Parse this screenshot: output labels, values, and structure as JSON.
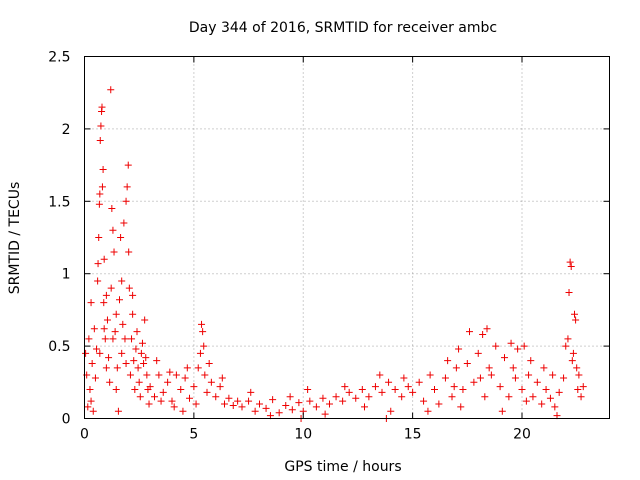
{
  "chart_data": {
    "type": "scatter",
    "title": "Day 344 of 2016, SRMTID for receiver ambc",
    "xlabel": "GPS time / hours",
    "ylabel": "SRMTID / TECUs",
    "xlim": [
      0,
      24
    ],
    "ylim": [
      0,
      2.5
    ],
    "xticks": [
      0,
      5,
      10,
      15,
      20
    ],
    "yticks": [
      0,
      0.5,
      1,
      1.5,
      2,
      2.5
    ],
    "xtick_labels": [
      "0",
      "5",
      "10",
      "15",
      "20"
    ],
    "ytick_labels": [
      "0",
      "0.5",
      "1",
      "1.5",
      "2",
      "2.5"
    ],
    "grid": true,
    "marker": "+",
    "marker_color": "#ee0000",
    "series": [
      {
        "name": "SRMTID",
        "points": [
          [
            0.05,
            0.45
          ],
          [
            0.1,
            0.3
          ],
          [
            0.15,
            0.08
          ],
          [
            0.2,
            0.55
          ],
          [
            0.25,
            0.2
          ],
          [
            0.3,
            0.12
          ],
          [
            0.35,
            0.38
          ],
          [
            0.4,
            0.05
          ],
          [
            0.45,
            0.62
          ],
          [
            0.5,
            0.28
          ],
          [
            0.55,
            0.48
          ],
          [
            0.6,
            0.95
          ],
          [
            0.62,
            1.07
          ],
          [
            0.65,
            1.25
          ],
          [
            0.68,
            1.48
          ],
          [
            0.7,
            1.55
          ],
          [
            0.72,
            1.92
          ],
          [
            0.75,
            2.02
          ],
          [
            0.78,
            2.12
          ],
          [
            0.8,
            2.15
          ],
          [
            0.82,
            1.6
          ],
          [
            0.85,
            1.72
          ],
          [
            0.88,
            0.8
          ],
          [
            0.9,
            1.1
          ],
          [
            0.95,
            0.55
          ],
          [
            1.0,
            0.35
          ],
          [
            1.05,
            0.68
          ],
          [
            1.1,
            0.42
          ],
          [
            1.15,
            0.25
          ],
          [
            1.2,
            2.27
          ],
          [
            1.22,
            0.9
          ],
          [
            1.25,
            1.45
          ],
          [
            1.3,
            1.3
          ],
          [
            1.35,
            1.15
          ],
          [
            1.4,
            0.6
          ],
          [
            1.45,
            0.2
          ],
          [
            1.5,
            0.35
          ],
          [
            1.55,
            0.05
          ],
          [
            1.6,
            0.82
          ],
          [
            1.65,
            1.25
          ],
          [
            1.7,
            0.45
          ],
          [
            1.75,
            0.65
          ],
          [
            1.8,
            1.35
          ],
          [
            1.85,
            0.55
          ],
          [
            1.9,
            1.5
          ],
          [
            1.95,
            1.6
          ],
          [
            2.0,
            1.75
          ],
          [
            2.02,
            1.15
          ],
          [
            2.05,
            0.9
          ],
          [
            2.1,
            0.3
          ],
          [
            2.15,
            0.55
          ],
          [
            2.2,
            0.72
          ],
          [
            2.25,
            0.4
          ],
          [
            2.3,
            0.2
          ],
          [
            2.35,
            0.48
          ],
          [
            2.4,
            0.6
          ],
          [
            2.45,
            0.35
          ],
          [
            2.5,
            0.25
          ],
          [
            2.55,
            0.15
          ],
          [
            2.6,
            0.45
          ],
          [
            2.65,
            0.52
          ],
          [
            2.7,
            0.38
          ],
          [
            2.75,
            0.68
          ],
          [
            2.8,
            0.42
          ],
          [
            2.85,
            0.3
          ],
          [
            2.9,
            0.2
          ],
          [
            2.95,
            0.1
          ],
          [
            0.3,
            0.8
          ],
          [
            0.7,
            0.45
          ],
          [
            1.0,
            0.85
          ],
          [
            1.3,
            0.55
          ],
          [
            1.7,
            0.95
          ],
          [
            2.2,
            0.85
          ],
          [
            0.9,
            0.62
          ],
          [
            1.45,
            0.72
          ],
          [
            1.9,
            0.38
          ],
          [
            3.0,
            0.22
          ],
          [
            3.2,
            0.15
          ],
          [
            3.4,
            0.3
          ],
          [
            3.6,
            0.18
          ],
          [
            3.8,
            0.25
          ],
          [
            4.0,
            0.12
          ],
          [
            4.2,
            0.3
          ],
          [
            4.4,
            0.2
          ],
          [
            4.6,
            0.28
          ],
          [
            4.8,
            0.14
          ],
          [
            5.0,
            0.22
          ],
          [
            5.2,
            0.35
          ],
          [
            5.3,
            0.45
          ],
          [
            5.35,
            0.65
          ],
          [
            5.4,
            0.6
          ],
          [
            5.45,
            0.5
          ],
          [
            5.5,
            0.3
          ],
          [
            5.6,
            0.18
          ],
          [
            5.8,
            0.25
          ],
          [
            6.0,
            0.15
          ],
          [
            6.2,
            0.22
          ],
          [
            6.4,
            0.1
          ],
          [
            6.6,
            0.14
          ],
          [
            6.8,
            0.09
          ],
          [
            7.0,
            0.12
          ],
          [
            3.5,
            0.12
          ],
          [
            4.1,
            0.08
          ],
          [
            4.7,
            0.35
          ],
          [
            5.1,
            0.1
          ],
          [
            5.7,
            0.38
          ],
          [
            6.3,
            0.28
          ],
          [
            3.3,
            0.4
          ],
          [
            3.9,
            0.32
          ],
          [
            4.5,
            0.05
          ],
          [
            7.2,
            0.08
          ],
          [
            7.5,
            0.12
          ],
          [
            7.8,
            0.05
          ],
          [
            8.0,
            0.1
          ],
          [
            8.3,
            0.07
          ],
          [
            8.6,
            0.13
          ],
          [
            8.9,
            0.04
          ],
          [
            9.2,
            0.09
          ],
          [
            9.5,
            0.06
          ],
          [
            9.8,
            0.11
          ],
          [
            10.0,
            0.05
          ],
          [
            10.3,
            0.12
          ],
          [
            10.6,
            0.08
          ],
          [
            10.9,
            0.14
          ],
          [
            11.2,
            0.1
          ],
          [
            11.5,
            0.15
          ],
          [
            11.8,
            0.12
          ],
          [
            12.1,
            0.18
          ],
          [
            12.4,
            0.14
          ],
          [
            12.7,
            0.2
          ],
          [
            13.0,
            0.15
          ],
          [
            13.3,
            0.22
          ],
          [
            13.6,
            0.18
          ],
          [
            13.9,
            0.25
          ],
          [
            14.2,
            0.2
          ],
          [
            14.5,
            0.15
          ],
          [
            14.8,
            0.22
          ],
          [
            7.6,
            0.18
          ],
          [
            8.5,
            0.02
          ],
          [
            9.4,
            0.15
          ],
          [
            10.2,
            0.2
          ],
          [
            11.0,
            0.03
          ],
          [
            11.9,
            0.22
          ],
          [
            12.8,
            0.08
          ],
          [
            13.5,
            0.3
          ],
          [
            14.0,
            0.05
          ],
          [
            14.6,
            0.28
          ],
          [
            9.9,
            0.0
          ],
          [
            13.8,
            0.0
          ],
          [
            15.0,
            0.18
          ],
          [
            15.3,
            0.25
          ],
          [
            15.5,
            0.12
          ],
          [
            15.8,
            0.3
          ],
          [
            16.0,
            0.2
          ],
          [
            16.2,
            0.1
          ],
          [
            16.5,
            0.28
          ],
          [
            16.8,
            0.15
          ],
          [
            17.0,
            0.35
          ],
          [
            17.1,
            0.48
          ],
          [
            17.3,
            0.2
          ],
          [
            17.5,
            0.38
          ],
          [
            17.6,
            0.6
          ],
          [
            17.8,
            0.25
          ],
          [
            18.0,
            0.45
          ],
          [
            18.2,
            0.58
          ],
          [
            18.3,
            0.15
          ],
          [
            18.4,
            0.62
          ],
          [
            18.6,
            0.3
          ],
          [
            18.8,
            0.5
          ],
          [
            19.0,
            0.22
          ],
          [
            19.2,
            0.42
          ],
          [
            19.4,
            0.15
          ],
          [
            19.6,
            0.35
          ],
          [
            19.8,
            0.48
          ],
          [
            20.0,
            0.2
          ],
          [
            20.1,
            0.5
          ],
          [
            20.3,
            0.3
          ],
          [
            20.5,
            0.15
          ],
          [
            20.7,
            0.25
          ],
          [
            20.9,
            0.1
          ],
          [
            21.1,
            0.2
          ],
          [
            21.3,
            0.14
          ],
          [
            21.5,
            0.08
          ],
          [
            21.7,
            0.18
          ],
          [
            21.9,
            0.28
          ],
          [
            22.0,
            0.5
          ],
          [
            22.1,
            0.55
          ],
          [
            22.15,
            0.87
          ],
          [
            22.2,
            1.08
          ],
          [
            22.25,
            1.05
          ],
          [
            22.3,
            0.4
          ],
          [
            22.4,
            0.72
          ],
          [
            22.45,
            0.68
          ],
          [
            22.5,
            0.35
          ],
          [
            22.55,
            0.2
          ],
          [
            22.6,
            0.3
          ],
          [
            22.7,
            0.15
          ],
          [
            22.8,
            0.22
          ],
          [
            15.7,
            0.05
          ],
          [
            16.6,
            0.4
          ],
          [
            17.2,
            0.08
          ],
          [
            18.5,
            0.35
          ],
          [
            19.1,
            0.05
          ],
          [
            19.7,
            0.28
          ],
          [
            20.4,
            0.4
          ],
          [
            21.0,
            0.35
          ],
          [
            21.6,
            0.02
          ],
          [
            16.9,
            0.22
          ],
          [
            18.1,
            0.28
          ],
          [
            19.5,
            0.52
          ],
          [
            20.2,
            0.12
          ],
          [
            21.4,
            0.3
          ],
          [
            22.35,
            0.45
          ]
        ]
      }
    ]
  }
}
